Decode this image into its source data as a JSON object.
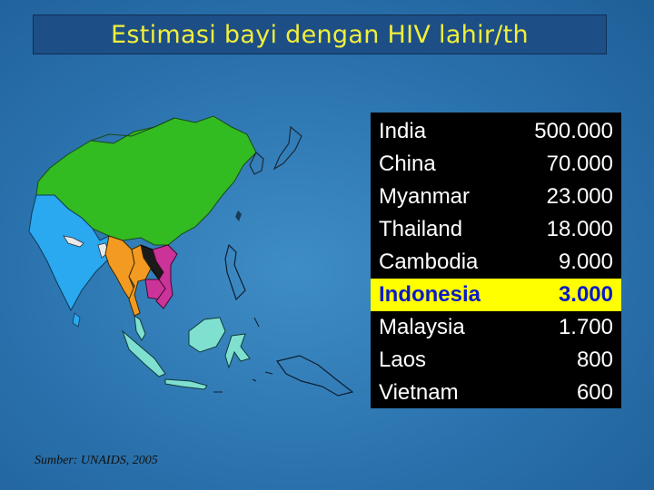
{
  "title": "Estimasi bayi dengan HIV lahir/th",
  "colors": {
    "title_text": "#f2ee3a",
    "title_bg": "#1d4f86",
    "highlight_bg": "#ffff00",
    "highlight_text": "#0a1ac8",
    "table_bg": "#000000",
    "china": "#33bb22",
    "india": "#2aa8f0",
    "myanmar": "#f39a22",
    "thailand": "#f39a22",
    "cambodia": "#cc3399",
    "indonesia_malaysia": "#7fe0d0"
  },
  "table": {
    "rows": [
      {
        "country": "India",
        "value": "500.000",
        "highlight": false
      },
      {
        "country": "China",
        "value": "70.000",
        "highlight": false
      },
      {
        "country": "Myanmar",
        "value": "23.000",
        "highlight": false
      },
      {
        "country": "Thailand",
        "value": "18.000",
        "highlight": false
      },
      {
        "country": "Cambodia",
        "value": "9.000",
        "highlight": false
      },
      {
        "country": "Indonesia",
        "value": "3.000",
        "highlight": true
      },
      {
        "country": "Malaysia",
        "value": "1.700",
        "highlight": false
      },
      {
        "country": "Laos",
        "value": "800",
        "highlight": false
      },
      {
        "country": "Vietnam",
        "value": "600",
        "highlight": false
      }
    ]
  },
  "source": "Sumber: UNAIDS, 2005"
}
